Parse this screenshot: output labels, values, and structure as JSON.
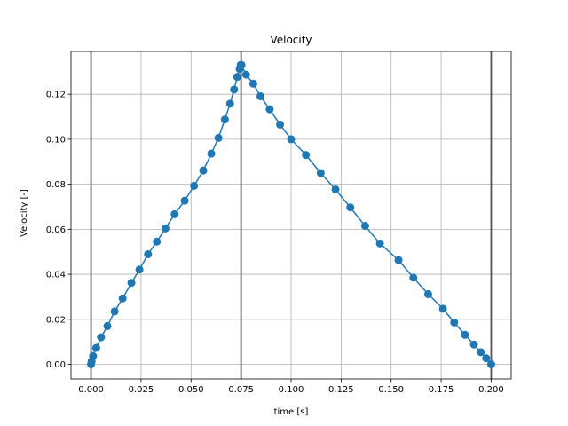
{
  "chart_data": {
    "type": "line",
    "title": "Velocity",
    "xlabel": "time [s]",
    "ylabel": "Velocity [-]",
    "xlim": [
      -0.01,
      0.21
    ],
    "ylim": [
      -0.0065,
      0.139
    ],
    "grid": true,
    "xticks": [
      0.0,
      0.025,
      0.05,
      0.075,
      0.1,
      0.125,
      0.15,
      0.175,
      0.2
    ],
    "xtick_labels": [
      "0.000",
      "0.025",
      "0.050",
      "0.075",
      "0.100",
      "0.125",
      "0.150",
      "0.175",
      "0.200"
    ],
    "yticks": [
      0.0,
      0.02,
      0.04,
      0.06,
      0.08,
      0.1,
      0.12
    ],
    "ytick_labels": [
      "0.00",
      "0.02",
      "0.04",
      "0.06",
      "0.08",
      "0.10",
      "0.12"
    ],
    "vertical_lines": [
      0.0,
      0.075,
      0.2
    ],
    "colors": {
      "series": "#1f77b4",
      "vertical_lines": "#555555",
      "grid": "#b0b0b0"
    },
    "series": [
      {
        "x": [
          0.0,
          0.0003,
          0.001,
          0.0026,
          0.005,
          0.0082,
          0.0118,
          0.0158,
          0.0202,
          0.0242,
          0.0285,
          0.0329,
          0.0372,
          0.0418,
          0.0468,
          0.0515,
          0.0561,
          0.0601,
          0.0637,
          0.0669,
          0.0695,
          0.0715,
          0.0731,
          0.0743,
          0.0748,
          0.075,
          0.0752,
          0.0775,
          0.0811,
          0.0847,
          0.0893,
          0.0945,
          0.1,
          0.1074,
          0.1148,
          0.1222,
          0.1296,
          0.137,
          0.1444,
          0.1537,
          0.1611,
          0.1685,
          0.1759,
          0.1815,
          0.1869,
          0.1914,
          0.1948,
          0.1975,
          0.2
        ],
        "y": [
          0.0,
          0.0013,
          0.0037,
          0.0073,
          0.012,
          0.017,
          0.0235,
          0.0293,
          0.0362,
          0.0421,
          0.0489,
          0.0545,
          0.0604,
          0.0667,
          0.0727,
          0.0793,
          0.0861,
          0.0936,
          0.1006,
          0.1088,
          0.1158,
          0.1221,
          0.1277,
          0.1312,
          0.133,
          0.133,
          0.133,
          0.1287,
          0.1247,
          0.1191,
          0.1133,
          0.1065,
          0.1,
          0.093,
          0.085,
          0.0777,
          0.0697,
          0.0615,
          0.0537,
          0.0463,
          0.0385,
          0.0312,
          0.0247,
          0.0186,
          0.0131,
          0.0088,
          0.0054,
          0.0027,
          0.0
        ]
      }
    ]
  }
}
